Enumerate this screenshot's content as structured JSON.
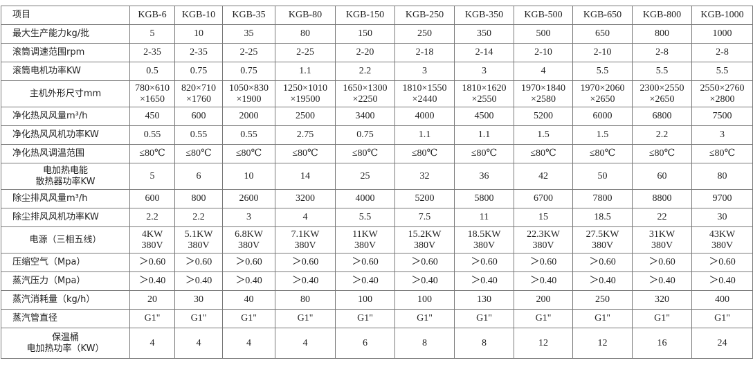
{
  "table": {
    "header": [
      "项目",
      "KGB-6",
      "KGB-10",
      "KGB-35",
      "KGB-80",
      "KGB-150",
      "KGB-250",
      "KGB-350",
      "KGB-500",
      "KGB-650",
      "KGB-800",
      "KGB-1000"
    ],
    "rows": [
      [
        "最大生产能力kg/批",
        "5",
        "10",
        "35",
        "80",
        "150",
        "250",
        "350",
        "500",
        "650",
        "800",
        "1000"
      ],
      [
        "滚筒调速范围rpm",
        "2-35",
        "2-35",
        "2-25",
        "2-25",
        "2-20",
        "2-18",
        "2-14",
        "2-10",
        "2-10",
        "2-8",
        "2-8"
      ],
      [
        "滚筒电机功率KW",
        "0.5",
        "0.75",
        "0.75",
        "1.1",
        "2.2",
        "3",
        "3",
        "4",
        "5.5",
        "5.5",
        "5.5"
      ],
      [
        "主机外形尺寸mm",
        "780×610\n×1650",
        "820×710\n×1760",
        "1050×830\n×1900",
        "1250×1010\n×19500",
        "1650×1300\n×2250",
        "1810×1550\n×2440",
        "1810×1620\n×2550",
        "1970×1840\n×2580",
        "1970×2060\n×2650",
        "2300×2550\n×2650",
        "2550×2760\n×2800"
      ],
      [
        "净化热风风量m³/h",
        "450",
        "600",
        "2000",
        "2500",
        "3400",
        "4000",
        "4500",
        "5200",
        "6000",
        "6800",
        "7500"
      ],
      [
        "净化热风风机功率KW",
        "0.55",
        "0.55",
        "0.55",
        "2.75",
        "0.75",
        "1.1",
        "1.1",
        "1.5",
        "1.5",
        "2.2",
        "3"
      ],
      [
        "净化热风调温范围",
        "≤80℃",
        "≤80℃",
        "≤80℃",
        "≤80℃",
        "≤80℃",
        "≤80℃",
        "≤80℃",
        "≤80℃",
        "≤80℃",
        "≤80℃",
        "≤80℃"
      ],
      [
        "电加热电能\n散热器功率KW",
        "5",
        "6",
        "10",
        "14",
        "25",
        "32",
        "36",
        "42",
        "50",
        "60",
        "80"
      ],
      [
        "除尘排风风量m³/h",
        "600",
        "800",
        "2600",
        "3200",
        "4000",
        "5200",
        "5800",
        "6700",
        "7800",
        "8800",
        "9700"
      ],
      [
        "除尘排风风机功率KW",
        "2.2",
        "2.2",
        "3",
        "4",
        "5.5",
        "7.5",
        "11",
        "15",
        "18.5",
        "22",
        "30"
      ],
      [
        "电源（三相五线）",
        "4KW\n380V",
        "5.1KW\n380V",
        "6.8KW\n380V",
        "7.1KW\n380V",
        "11KW\n380V",
        "15.2KW\n380V",
        "18.5KW\n380V",
        "22.3KW\n380V",
        "27.5KW\n380V",
        "31KW\n380V",
        "43KW\n380V"
      ],
      [
        "压缩空气（Mpa）",
        "＞0.60",
        "＞0.60",
        "＞0.60",
        "＞0.60",
        "＞0.60",
        "＞0.60",
        "＞0.60",
        "＞0.60",
        "＞0.60",
        "＞0.60",
        "＞0.60"
      ],
      [
        "蒸汽压力（Mpa）",
        "＞0.40",
        "＞0.40",
        "＞0.40",
        "＞0.40",
        "＞0.40",
        "＞0.40",
        "＞0.40",
        "＞0.40",
        "＞0.40",
        "＞0.40",
        "＞0.40"
      ],
      [
        "蒸汽消耗量（kg/h）",
        "20",
        "30",
        "40",
        "80",
        "100",
        "100",
        "130",
        "200",
        "250",
        "320",
        "400"
      ],
      [
        "蒸汽管直径",
        "G1\"",
        "G1\"",
        "G1\"",
        "G1\"",
        "G1\"",
        "G1\"",
        "G1\"",
        "G1\"",
        "G1\"",
        "G1\"",
        "G1\""
      ],
      [
        "保温桶\n电加热功率（KW）",
        "4",
        "4",
        "4",
        "4",
        "6",
        "8",
        "8",
        "12",
        "12",
        "16",
        "24"
      ]
    ]
  }
}
